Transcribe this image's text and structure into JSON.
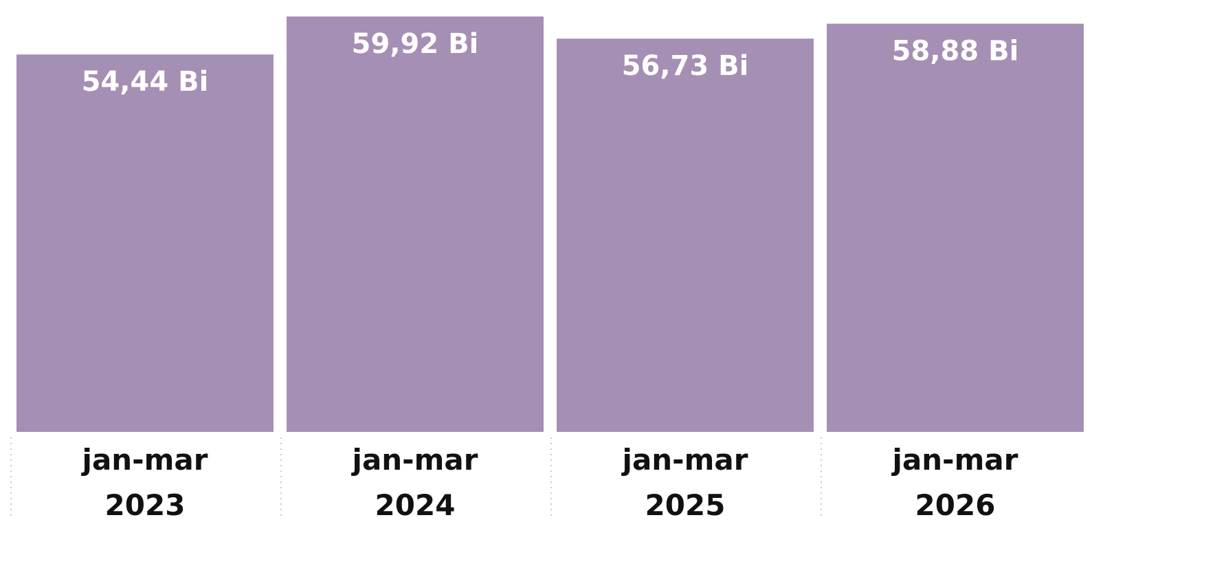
{
  "chart_data": {
    "type": "bar",
    "categories": [
      "jan-mar 2023",
      "jan-mar 2024",
      "jan-mar 2025",
      "jan-mar 2026"
    ],
    "values": [
      54.44,
      59.92,
      56.73,
      58.88
    ],
    "value_labels": [
      "54,44 Bi",
      "59,92 Bi",
      "56,73 Bi",
      "58,88 Bi"
    ],
    "color": "#a58fb4",
    "ylim": [
      0,
      62.3
    ]
  }
}
